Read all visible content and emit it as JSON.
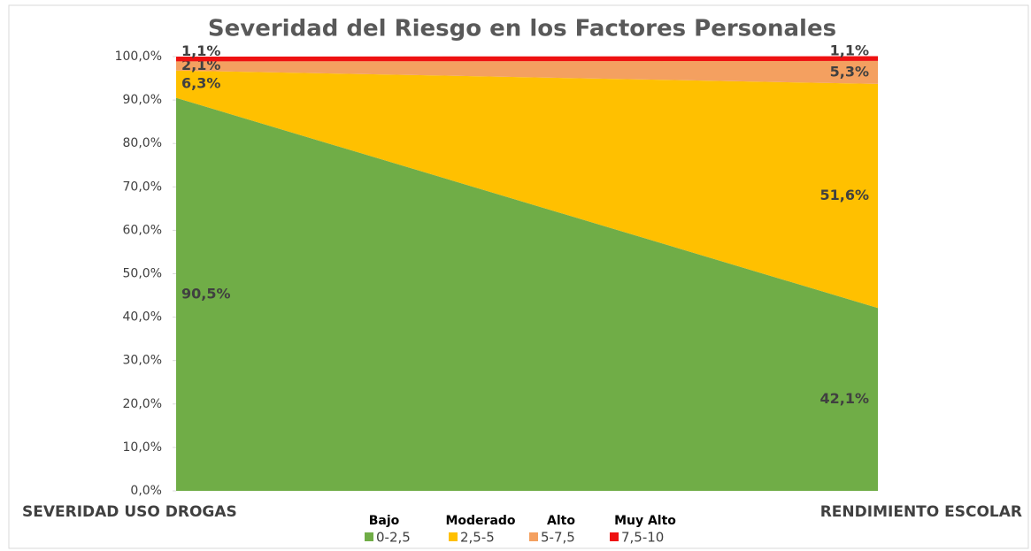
{
  "chart_data": {
    "type": "stacked_area",
    "title": "Severidad del Riesgo en los Factores Personales",
    "categories": [
      "SEVERIDAD USO DROGAS",
      "RENDIMIENTO ESCOLAR"
    ],
    "series": [
      {
        "name": "0-2,5",
        "group": "Bajo",
        "color": "#70ad47",
        "values": [
          90.5,
          42.1
        ],
        "value_labels": [
          "90,5%",
          "42,1%"
        ]
      },
      {
        "name": "2,5-5",
        "group": "Moderado",
        "color": "#ffc000",
        "values": [
          6.3,
          51.6
        ],
        "value_labels": [
          "6,3%",
          "51,6%"
        ]
      },
      {
        "name": "5-7,5",
        "group": "Alto",
        "color": "#f4a060",
        "values": [
          2.1,
          5.3
        ],
        "value_labels": [
          "2,1%",
          "5,3%"
        ]
      },
      {
        "name": "7,5-10",
        "group": "Muy Alto",
        "color": "#ee1111",
        "values": [
          1.1,
          1.1
        ],
        "value_labels": [
          "1,1%",
          "1,1%"
        ]
      }
    ],
    "ylim": [
      0,
      100
    ],
    "yticks": [
      {
        "value": 0,
        "label": "0,0%"
      },
      {
        "value": 10,
        "label": "10,0%"
      },
      {
        "value": 20,
        "label": "20,0%"
      },
      {
        "value": 30,
        "label": "30,0%"
      },
      {
        "value": 40,
        "label": "40,0%"
      },
      {
        "value": 50,
        "label": "50,0%"
      },
      {
        "value": 60,
        "label": "60,0%"
      },
      {
        "value": 70,
        "label": "70,0%"
      },
      {
        "value": 80,
        "label": "80,0%"
      },
      {
        "value": 90,
        "label": "90,0%"
      },
      {
        "value": 100,
        "label": "100,0%"
      }
    ],
    "grid": false
  }
}
